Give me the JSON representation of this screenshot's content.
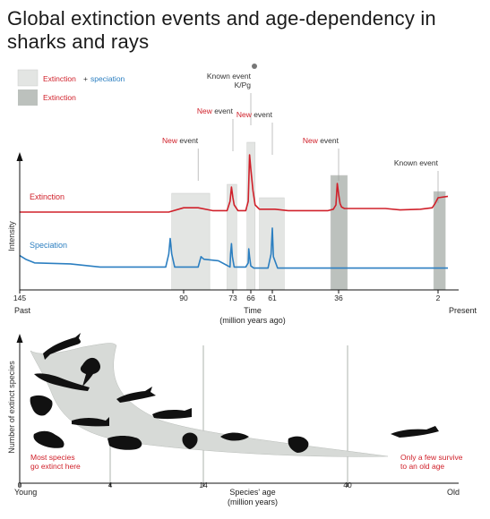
{
  "title": "Global extinction events and age-dependency in sharks and rays",
  "colors": {
    "extinction": "#d0202a",
    "speciation": "#2c7fc1",
    "ext_spec_box": "#e3e5e3",
    "extinction_box": "#bcc1bd",
    "new_event": "#d0202a",
    "known_event": "#333333",
    "band": "#d7dad7",
    "silhouette": "#111111"
  },
  "legend": {
    "item1_extinction": "Extinction",
    "item1_plus": "+",
    "item1_speciation": "speciation",
    "item2": "Extinction"
  },
  "chart_data": [
    {
      "type": "line",
      "xlabel": "Time",
      "xlabel2": "(million years ago)",
      "ylabel": "Intensity",
      "x_domain": [
        145,
        0
      ],
      "x_ticks": [
        145,
        90,
        73,
        66,
        61,
        36,
        2
      ],
      "x_left_label": "Past",
      "x_right_label": "Present",
      "series": [
        {
          "name": "Extinction",
          "x": [
            145,
            130,
            110,
            95,
            90,
            88,
            85,
            80,
            75,
            74,
            73.5,
            73,
            72.5,
            71,
            69,
            68,
            67,
            66.5,
            66,
            65.5,
            65,
            64,
            62,
            60,
            55,
            45,
            40,
            38,
            37,
            36.5,
            36,
            35.5,
            35,
            34,
            30,
            20,
            15,
            8,
            4,
            3,
            2,
            0
          ],
          "values": [
            0.1,
            0.1,
            0.1,
            0.1,
            0.16,
            0.16,
            0.16,
            0.12,
            0.12,
            0.25,
            0.45,
            0.3,
            0.2,
            0.12,
            0.12,
            0.12,
            0.25,
            0.9,
            0.7,
            0.4,
            0.2,
            0.14,
            0.14,
            0.14,
            0.12,
            0.12,
            0.12,
            0.14,
            0.2,
            0.5,
            0.35,
            0.22,
            0.17,
            0.15,
            0.15,
            0.15,
            0.13,
            0.14,
            0.16,
            0.22,
            0.3,
            0.32
          ]
        },
        {
          "name": "Speciation",
          "x": [
            145,
            143,
            140,
            128,
            118,
            110,
            100,
            96,
            95,
            94.5,
            94,
            93,
            92,
            85,
            84,
            83,
            78,
            74,
            73.8,
            73.5,
            73.2,
            72.5,
            71,
            68,
            67,
            66.8,
            66.5,
            66,
            65.3,
            64,
            62,
            61.3,
            61,
            60.6,
            59,
            45,
            30,
            10,
            0
          ],
          "values": [
            0.42,
            0.35,
            0.28,
            0.26,
            0.2,
            0.2,
            0.2,
            0.2,
            0.45,
            0.75,
            0.45,
            0.2,
            0.2,
            0.2,
            0.4,
            0.35,
            0.32,
            0.2,
            0.45,
            0.65,
            0.4,
            0.2,
            0.2,
            0.2,
            0.28,
            0.55,
            0.4,
            0.22,
            0.18,
            0.18,
            0.18,
            0.45,
            0.95,
            0.4,
            0.18,
            0.18,
            0.18,
            0.18,
            0.18
          ]
        }
      ],
      "boxes": [
        {
          "label": "Extinction + speciation",
          "x_start": 94,
          "x_end": 81
        },
        {
          "label": "Extinction + speciation",
          "x_start": 75,
          "x_end": 71.5
        },
        {
          "label": "Extinction + speciation",
          "x_start": 67.5,
          "x_end": 65
        },
        {
          "label": "Extinction + speciation",
          "x_start": 64,
          "x_end": 56.5
        },
        {
          "label": "Extinction",
          "x_start": 39,
          "x_end": 33
        },
        {
          "label": "Extinction",
          "x_start": 3.5,
          "x_end": 0.5
        }
      ],
      "annotations": [
        {
          "x": 85,
          "kind": "new",
          "word": "New",
          "rest": "event"
        },
        {
          "x": 73,
          "kind": "new",
          "word": "New",
          "rest": "event"
        },
        {
          "x": 66,
          "kind": "known",
          "text": "Known event",
          "text2": "K/Pg"
        },
        {
          "x": 61,
          "kind": "new",
          "word": "New",
          "rest": "event"
        },
        {
          "x": 36,
          "kind": "new",
          "word": "New",
          "rest": "event"
        },
        {
          "x": 2,
          "kind": "known",
          "text": "Known event"
        }
      ]
    },
    {
      "type": "area",
      "xlabel": "Species' age",
      "xlabel2": "(million years)",
      "ylabel": "Number of extinct species",
      "x_ticks": [
        0,
        4,
        14,
        40
      ],
      "x_left_label": "Young",
      "x_right_label": "Old",
      "annotations": [
        {
          "text": "Most species",
          "text2": "go extinct here",
          "position": "bottom-left"
        },
        {
          "text": "Only a few survive",
          "text2": "to an old age",
          "position": "bottom-right"
        }
      ]
    }
  ]
}
